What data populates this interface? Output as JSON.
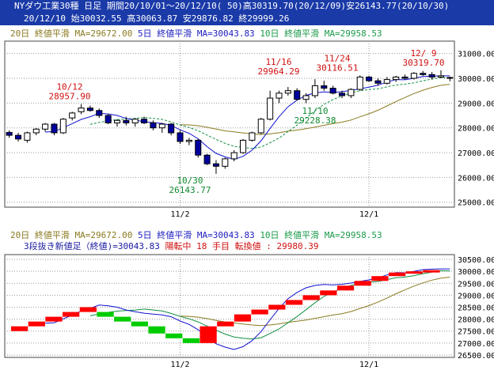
{
  "header": {
    "line1": "NYダウ工業30種 日足 期間20/10/01～20/12/10( 50)高30319.70(20/12/09)安26143.77(20/10/30)",
    "line2": "20/12/10      始30032.55 高30063.87 安29876.82 終29999.26"
  },
  "legend": {
    "ma20": "20日 終値平滑 MA=29672.00",
    "ma5": "5日 終値平滑 MA=30043.83",
    "ma10": "10日 終値平滑 MA=29958.53"
  },
  "sub_info": {
    "text": "3段抜き新値足（終値)=30043.83 ",
    "status": "陽転中  18 手目 転換値 : 29980.39"
  },
  "colors": {
    "up": "#ffffff",
    "down": "#0000a0",
    "ma5": "#1010d0",
    "ma10": "#109040",
    "ma20": "#8a7a20",
    "newprice_up": "#ff0000",
    "newprice_down": "#00cc00",
    "grid": "#9a9a9a",
    "annot_red": "#d01010",
    "annot_green": "#108a30"
  },
  "chart_data": [
    {
      "type": "candlestick",
      "title": "NYダウ工業30種 日足",
      "x_ticks": [
        "11/2",
        "12/1"
      ],
      "y_ticks": [
        25000,
        26000,
        27000,
        28000,
        29000,
        30000,
        31000
      ],
      "ylim": [
        24800,
        31500
      ],
      "annotations": [
        {
          "date": "10/12",
          "value": "28957.90",
          "kind": "high"
        },
        {
          "date": "11/16",
          "value": "29964.29",
          "kind": "high"
        },
        {
          "date": "11/24",
          "value": "30116.51",
          "kind": "high"
        },
        {
          "date": "12/ 9",
          "value": "30319.70",
          "kind": "high"
        },
        {
          "date": "10/30",
          "value": "26143.77",
          "kind": "low"
        },
        {
          "date": "11/10",
          "value": "29228.38",
          "kind": "low"
        }
      ],
      "candles": [
        [
          27817,
          27900,
          27600,
          27700
        ],
        [
          27700,
          27800,
          27450,
          27550
        ],
        [
          27500,
          27850,
          27400,
          27800
        ],
        [
          27800,
          27990,
          27700,
          27950
        ],
        [
          27950,
          28200,
          27850,
          28150
        ],
        [
          28150,
          28200,
          27700,
          27800
        ],
        [
          27800,
          28400,
          27750,
          28350
        ],
        [
          28400,
          28650,
          28300,
          28600
        ],
        [
          28650,
          28958,
          28550,
          28800
        ],
        [
          28800,
          28900,
          28650,
          28700
        ],
        [
          28700,
          28780,
          28400,
          28500
        ],
        [
          28500,
          28550,
          28150,
          28200
        ],
        [
          28200,
          28350,
          28050,
          28300
        ],
        [
          28300,
          28450,
          28100,
          28200
        ],
        [
          28200,
          28400,
          28050,
          28350
        ],
        [
          28350,
          28450,
          28150,
          28200
        ],
        [
          28200,
          28300,
          27900,
          28000
        ],
        [
          28000,
          28200,
          27800,
          28150
        ],
        [
          28150,
          28200,
          27700,
          27800
        ],
        [
          27800,
          27900,
          27350,
          27450
        ],
        [
          27450,
          27600,
          27300,
          27500
        ],
        [
          27500,
          27550,
          26800,
          26900
        ],
        [
          26900,
          26950,
          26500,
          26550
        ],
        [
          26550,
          26700,
          26144,
          26450
        ],
        [
          26450,
          26800,
          26350,
          26750
        ],
        [
          26750,
          27100,
          26650,
          27000
        ],
        [
          27000,
          27550,
          26950,
          27500
        ],
        [
          27500,
          27850,
          27450,
          27800
        ],
        [
          27800,
          28400,
          27750,
          28350
        ],
        [
          28350,
          29500,
          28300,
          29200
        ],
        [
          29200,
          29500,
          29000,
          29400
        ],
        [
          29400,
          29650,
          29300,
          29500
        ],
        [
          29500,
          29600,
          29100,
          29150
        ],
        [
          29150,
          29400,
          29000,
          29300
        ],
        [
          29300,
          29964,
          29200,
          29700
        ],
        [
          29700,
          29900,
          29500,
          29600
        ],
        [
          29600,
          29700,
          29350,
          29400
        ],
        [
          29400,
          29500,
          29200,
          29300
        ],
        [
          29300,
          29600,
          29200,
          29550
        ],
        [
          29550,
          30117,
          29500,
          30050
        ],
        [
          30050,
          30100,
          29850,
          29900
        ],
        [
          29900,
          30000,
          29700,
          29800
        ],
        [
          29800,
          30050,
          29750,
          29950
        ],
        [
          29950,
          30100,
          29850,
          30050
        ],
        [
          30050,
          30150,
          29950,
          30000
        ],
        [
          30000,
          30250,
          29950,
          30200
        ],
        [
          30200,
          30300,
          30100,
          30150
        ],
        [
          30150,
          30250,
          29950,
          30050
        ],
        [
          30050,
          30320,
          30000,
          30100
        ],
        [
          30033,
          30064,
          29877,
          29999
        ]
      ]
    },
    {
      "type": "bar",
      "title": "3段抜き新値足",
      "x_ticks": [
        "11/2",
        "12/1"
      ],
      "y_ticks": [
        26500,
        27000,
        27500,
        28000,
        28500,
        29000,
        29500,
        30000,
        30500
      ],
      "ylim": [
        26400,
        30700
      ],
      "bricks": [
        [
          27500,
          27700,
          "up"
        ],
        [
          27700,
          27900,
          "up"
        ],
        [
          27900,
          28100,
          "up"
        ],
        [
          28100,
          28300,
          "up"
        ],
        [
          28300,
          28500,
          "up"
        ],
        [
          28100,
          28300,
          "down"
        ],
        [
          27900,
          28100,
          "down"
        ],
        [
          27700,
          27900,
          "down"
        ],
        [
          27400,
          27700,
          "down"
        ],
        [
          27200,
          27400,
          "down"
        ],
        [
          27000,
          27200,
          "down"
        ],
        [
          27000,
          27700,
          "up"
        ],
        [
          27700,
          27900,
          "up"
        ],
        [
          27900,
          28200,
          "up"
        ],
        [
          28200,
          28400,
          "up"
        ],
        [
          28400,
          28600,
          "up"
        ],
        [
          28600,
          28800,
          "up"
        ],
        [
          28800,
          29000,
          "up"
        ],
        [
          29000,
          29200,
          "up"
        ],
        [
          29200,
          29400,
          "up"
        ],
        [
          29400,
          29600,
          "up"
        ],
        [
          29600,
          29800,
          "up"
        ],
        [
          29800,
          29950,
          "up"
        ],
        [
          29950,
          30000,
          "up"
        ],
        [
          30000,
          30050,
          "up"
        ]
      ]
    }
  ]
}
